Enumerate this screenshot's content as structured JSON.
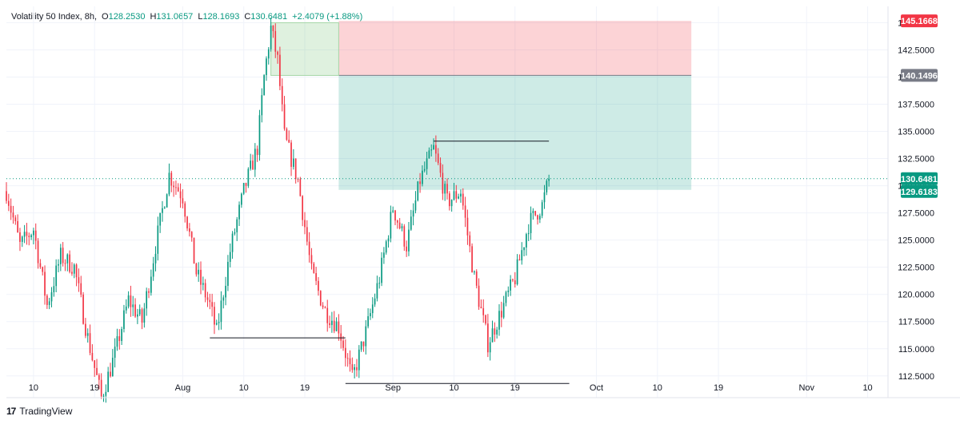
{
  "legend": {
    "symbol": "Volatility 50 Index, 8h,",
    "o_label": "O",
    "o_value": "128.2530",
    "h_label": "H",
    "h_value": "131.0657",
    "l_label": "L",
    "l_value": "128.1693",
    "c_label": "C",
    "c_value": "130.6481",
    "change": "+2.4079 (+1.88%)"
  },
  "brand": {
    "logo": "17",
    "name": "TradingView"
  },
  "colors": {
    "up": "#089981",
    "down": "#f23645",
    "grid": "#f0f3fa",
    "axis_text": "#131722",
    "badge_red": "#f23645",
    "badge_gray": "#787b86",
    "badge_green": "#089981"
  },
  "chart_data": {
    "type": "candlestick",
    "title": "Volatility 50 Index, 8h",
    "y_ticks": [
      "145.0000",
      "142.5000",
      "140.0000",
      "137.5000",
      "135.0000",
      "132.5000",
      "130.0000",
      "127.5000",
      "125.0000",
      "122.5000",
      "120.0000",
      "117.5000",
      "115.0000",
      "112.5000"
    ],
    "y_tick_values": [
      145,
      142.5,
      140,
      137.5,
      135,
      132.5,
      130,
      127.5,
      125,
      122.5,
      120,
      117.5,
      115,
      112.5
    ],
    "ylim": [
      110.5,
      146.5
    ],
    "x_ticks": [
      "10",
      "19",
      "Aug",
      "10",
      "19",
      "Sep",
      "10",
      "19",
      "Oct",
      "10",
      "19",
      "Nov",
      "10"
    ],
    "x_tick_positions": [
      "Jul 10",
      "Jul 19",
      "Aug 1",
      "Aug 10",
      "Aug 19",
      "Sep 1",
      "Sep 10",
      "Sep 19",
      "Oct 1",
      "Oct 10",
      "Oct 19",
      "Nov 1",
      "Nov 10"
    ],
    "x_range": [
      "Jul 6",
      "Nov 13"
    ],
    "grid": true,
    "last_close": 130.6481,
    "price_badges": [
      {
        "label": "145.1668",
        "value": 145.1668,
        "role": "stop-loss"
      },
      {
        "label": "140.1496",
        "value": 140.1496,
        "role": "entry"
      },
      {
        "label": "130.6481",
        "value": 130.6481,
        "role": "last-price"
      },
      {
        "label": "129.6183",
        "value": 129.6183,
        "role": "take-profit"
      }
    ],
    "position_tool": {
      "type": "short-position",
      "from_date": "Aug 24",
      "to_date": "Oct 15",
      "entry": 140.1496,
      "stop": 145.1668,
      "target": 129.6183
    },
    "green_zone": {
      "from_date": "Aug 14",
      "to_date": "Aug 24",
      "low": 140.1496,
      "high": 145.0
    },
    "horizontal_lines": [
      {
        "from_date": "Aug 5",
        "to_date": "Aug 25",
        "price": 116.0
      },
      {
        "from_date": "Aug 25",
        "to_date": "Sep 27",
        "price": 111.8
      },
      {
        "from_date": "Sep 7",
        "to_date": "Sep 24",
        "price": 134.1
      }
    ],
    "price_path": [
      [
        "Jul 6",
        129.5
      ],
      [
        "Jul 8",
        124.5
      ],
      [
        "Jul 10",
        126.0
      ],
      [
        "Jul 12",
        119.0
      ],
      [
        "Jul 14",
        123.5
      ],
      [
        "Jul 16",
        122.5
      ],
      [
        "Jul 18",
        116.0
      ],
      [
        "Jul 20",
        110.5
      ],
      [
        "Jul 22",
        114.5
      ],
      [
        "Jul 24",
        119.5
      ],
      [
        "Jul 26",
        117.5
      ],
      [
        "Jul 28",
        124.5
      ],
      [
        "Jul 30",
        131.0
      ],
      [
        "Aug 1",
        129.0
      ],
      [
        "Aug 3",
        122.0
      ],
      [
        "Aug 5",
        119.0
      ],
      [
        "Aug 6",
        116.5
      ],
      [
        "Aug 8",
        124.0
      ],
      [
        "Aug 10",
        129.5
      ],
      [
        "Aug 12",
        133.5
      ],
      [
        "Aug 13",
        140.0
      ],
      [
        "Aug 14",
        144.5
      ],
      [
        "Aug 15",
        141.5
      ],
      [
        "Aug 16",
        134.5
      ],
      [
        "Aug 18",
        130.5
      ],
      [
        "Aug 20",
        122.0
      ],
      [
        "Aug 22",
        118.5
      ],
      [
        "Aug 24",
        117.0
      ],
      [
        "Aug 26",
        112.2
      ],
      [
        "Aug 28",
        116.5
      ],
      [
        "Aug 30",
        121.5
      ],
      [
        "Sep 1",
        128.0
      ],
      [
        "Sep 3",
        124.5
      ],
      [
        "Sep 5",
        130.5
      ],
      [
        "Sep 7",
        133.4
      ],
      [
        "Sep 9",
        128.5
      ],
      [
        "Sep 11",
        129.5
      ],
      [
        "Sep 13",
        121.5
      ],
      [
        "Sep 15",
        115.5
      ],
      [
        "Sep 17",
        118.5
      ],
      [
        "Sep 19",
        121.5
      ],
      [
        "Sep 21",
        126.5
      ],
      [
        "Sep 23",
        128.2
      ],
      [
        "Sep 24",
        130.6
      ]
    ]
  }
}
